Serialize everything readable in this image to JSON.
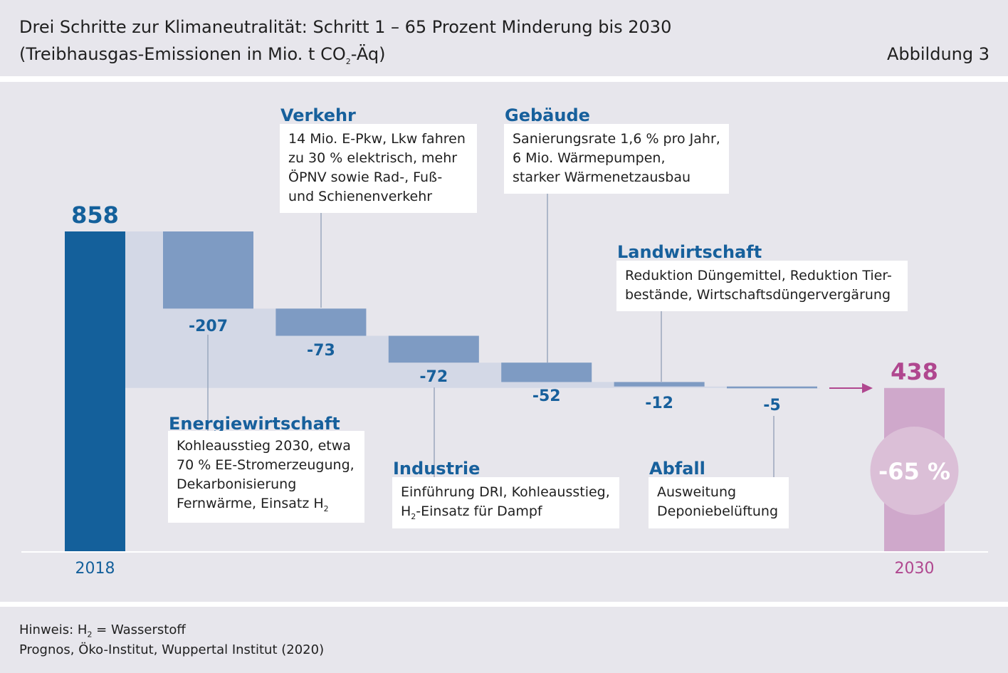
{
  "header": {
    "title_line1": "Drei Schritte zur Klimaneutralität: Schritt 1 – 65 Prozent Minderung bis 2030",
    "title_line2_prefix": "(Treibhausgas-Emissionen in Mio. t CO",
    "title_line2_sub": "2",
    "title_line2_suffix": "-Äq)",
    "figure_label": "Abbildung 3"
  },
  "chart_data": {
    "type": "bar",
    "subtype": "waterfall",
    "unit": "Mio. t CO2-Äq",
    "start": {
      "label": "2018",
      "value": 858,
      "color": "#14609b"
    },
    "end": {
      "label": "2030",
      "value": 438,
      "color": "#cfa8cb",
      "label_color": "#b0478f"
    },
    "steps": [
      {
        "category": "Energiewirtschaft",
        "value": -207,
        "label": "-207"
      },
      {
        "category": "Verkehr",
        "value": -73,
        "label": "-73"
      },
      {
        "category": "Industrie",
        "value": -72,
        "label": "-72"
      },
      {
        "category": "Gebäude",
        "value": -52,
        "label": "-52"
      },
      {
        "category": "Landwirtschaft",
        "value": -12,
        "label": "-12"
      },
      {
        "category": "Abfall",
        "value": -5,
        "label": "-5"
      }
    ],
    "start_label": "858",
    "end_label": "438",
    "reduction_badge": "-65 %",
    "colors": {
      "step": "#7e9bc3",
      "connector_area": "#d3d8e6",
      "value_text": "#17609c",
      "arrow": "#b0478f",
      "badge_circle": "#dbbfd7"
    }
  },
  "annotations": {
    "energie": {
      "title": "Energiewirtschaft",
      "lines": [
        "Kohleausstieg 2030, etwa",
        "70 % EE-Stromerzeugung,",
        "Dekarbonisierung"
      ],
      "last_prefix": "Fernwärme, Einsatz H",
      "last_sub": "2",
      "last_suffix": ""
    },
    "verkehr": {
      "title": "Verkehr",
      "lines": [
        "14 Mio. E-Pkw, Lkw fahren",
        "zu 30 % elektrisch, mehr",
        "ÖPNV sowie Rad-, Fuß-",
        "und Schienenverkehr"
      ]
    },
    "industrie": {
      "title": "Industrie",
      "line1": "Einführung DRI, Kohleausstieg,",
      "last_prefix": "H",
      "last_sub": "2",
      "last_suffix": "-Einsatz für Dampf"
    },
    "gebaeude": {
      "title": "Gebäude",
      "lines": [
        "Sanierungsrate 1,6 % pro Jahr,",
        "6 Mio. Wärmepumpen,",
        "starker Wärmenetzausbau"
      ]
    },
    "landwirtschaft": {
      "title": "Landwirtschaft",
      "lines": [
        "Reduktion Düngemittel, Reduktion Tier-",
        "bestände, Wirtschaftsdüngervergärung"
      ]
    },
    "abfall": {
      "title": "Abfall",
      "lines": [
        "Ausweitung",
        "Deponiebelüftung"
      ]
    }
  },
  "footer": {
    "note_prefix": "Hinweis: H",
    "note_sub": "2",
    "note_suffix": " = Wasserstoff",
    "source": "Prognos, Öko-Institut, Wuppertal Institut (2020)"
  }
}
